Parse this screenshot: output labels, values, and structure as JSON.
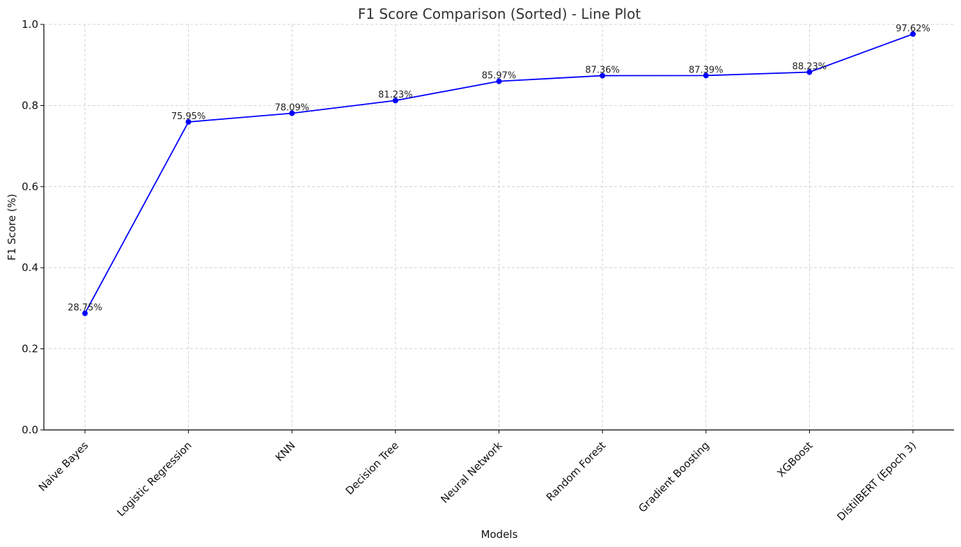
{
  "chart_data": {
    "type": "line",
    "title": "F1 Score Comparison (Sorted) - Line Plot",
    "xlabel": "Models",
    "ylabel": "F1 Score (%)",
    "ylim": [
      0,
      1.0
    ],
    "yticks": [
      0.0,
      0.2,
      0.4,
      0.6,
      0.8,
      1.0
    ],
    "ytick_labels": [
      "0.0",
      "0.2",
      "0.4",
      "0.6",
      "0.8",
      "1.0"
    ],
    "grid": true,
    "categories": [
      "Naive Bayes",
      "Logistic Regression",
      "KNN",
      "Decision Tree",
      "Neural Network",
      "Random Forest",
      "Gradient Boosting",
      "XGBoost",
      "DistilBERT (Epoch 3)"
    ],
    "series": [
      {
        "color": "#0000ff",
        "values": [
          0.2875,
          0.7595,
          0.7809,
          0.8123,
          0.8597,
          0.8736,
          0.8739,
          0.8823,
          0.9762
        ],
        "data_labels": [
          "28.75%",
          "75.95%",
          "78.09%",
          "81.23%",
          "85.97%",
          "87.36%",
          "87.39%",
          "88.23%",
          "97.62%"
        ]
      }
    ]
  }
}
